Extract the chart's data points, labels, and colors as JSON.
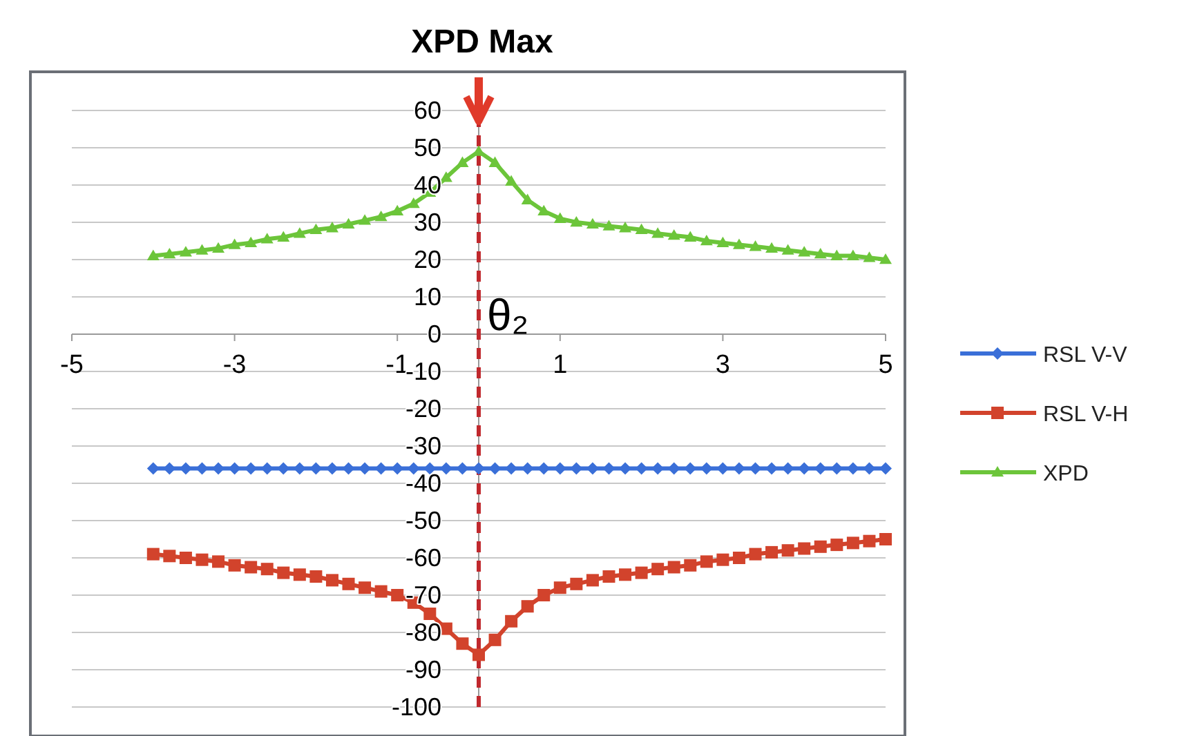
{
  "chart_data": {
    "type": "line",
    "title": "XPD Max",
    "legend": "right",
    "grid": "y",
    "xlim": [
      -5,
      5
    ],
    "xticks": [
      -5,
      -3,
      -1,
      1,
      3,
      5
    ],
    "ylim": [
      -100,
      60
    ],
    "yticks": [
      -100,
      -90,
      -80,
      -70,
      -60,
      -50,
      -40,
      -30,
      -20,
      -10,
      0,
      10,
      20,
      30,
      40,
      50,
      60
    ],
    "x": [
      -4,
      -3.8,
      -3.6,
      -3.4,
      -3.2,
      -3,
      -2.8,
      -2.6,
      -2.4,
      -2.2,
      -2,
      -1.8,
      -1.6,
      -1.4,
      -1.2,
      -1,
      -0.8,
      -0.6,
      -0.4,
      -0.2,
      0,
      0.2,
      0.4,
      0.6,
      0.8,
      1,
      1.2,
      1.4,
      1.6,
      1.8,
      2,
      2.2,
      2.4,
      2.6,
      2.8,
      3,
      3.2,
      3.4,
      3.6,
      3.8,
      4,
      4.2,
      4.4,
      4.6,
      4.8,
      5
    ],
    "ref_lines": [
      {
        "axis": "x",
        "value": 0,
        "label": "θ₂",
        "color": "#c0282d",
        "line_style": "dashed"
      }
    ],
    "series": [
      {
        "name": "RSL V-V",
        "color": "#3a6fd8",
        "marker": "diamond",
        "values": [
          -36,
          -36,
          -36,
          -36,
          -36,
          -36,
          -36,
          -36,
          -36,
          -36,
          -36,
          -36,
          -36,
          -36,
          -36,
          -36,
          -36,
          -36,
          -36,
          -36,
          -36,
          -36,
          -36,
          -36,
          -36,
          -36,
          -36,
          -36,
          -36,
          -36,
          -36,
          -36,
          -36,
          -36,
          -36,
          -36,
          -36,
          -36,
          -36,
          -36,
          -36,
          -36,
          -36,
          -36,
          -36,
          -36
        ]
      },
      {
        "name": "RSL V-H",
        "color": "#d2432c",
        "marker": "square",
        "values": [
          -59,
          -59.5,
          -60,
          -60.5,
          -61,
          -62,
          -62.5,
          -63,
          -64,
          -64.5,
          -65,
          -66,
          -67,
          -68,
          -69,
          -70,
          -72,
          -75,
          -79,
          -83,
          -86,
          -82,
          -77,
          -73,
          -70,
          -68,
          -67,
          -66,
          -65,
          -64.5,
          -64,
          -63,
          -62.5,
          -62,
          -61,
          -60.5,
          -60,
          -59,
          -58.5,
          -58,
          -57.5,
          -57,
          -56.5,
          -56,
          -55.5,
          -55
        ]
      },
      {
        "name": "XPD",
        "color": "#6cc53a",
        "marker": "triangle",
        "values": [
          21,
          21.5,
          22,
          22.5,
          23,
          24,
          24.5,
          25.5,
          26,
          27,
          28,
          28.5,
          29.5,
          30.5,
          31.5,
          33,
          35,
          38,
          42,
          46,
          49,
          46,
          41,
          36,
          33,
          31,
          30,
          29.5,
          29,
          28.5,
          28,
          27,
          26.5,
          26,
          25,
          24.5,
          24,
          23.5,
          23,
          22.5,
          22,
          21.5,
          21,
          21,
          20.5,
          20
        ]
      }
    ]
  }
}
